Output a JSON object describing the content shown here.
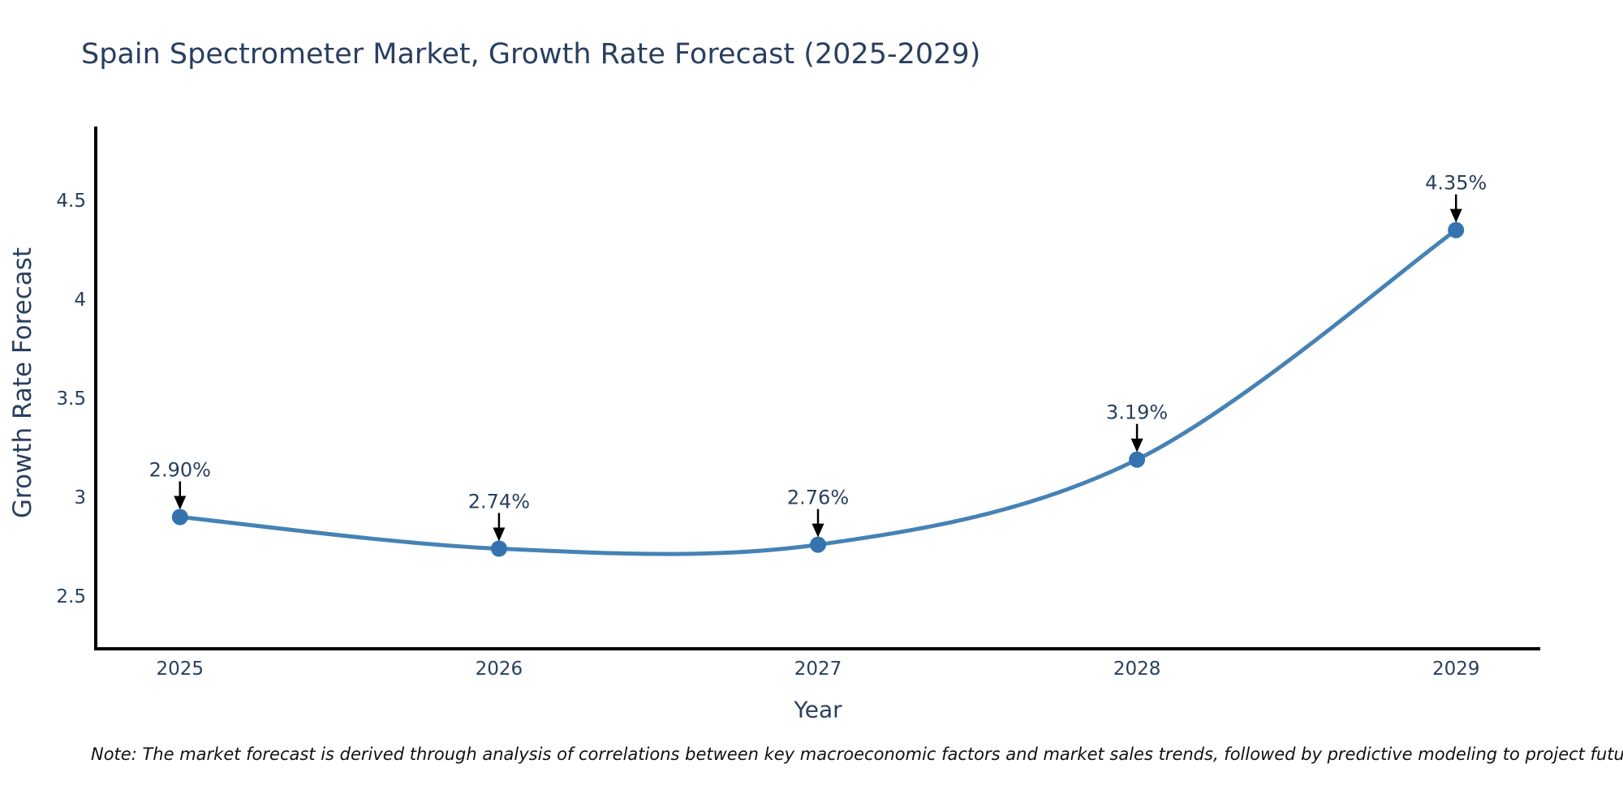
{
  "title": "Spain Spectrometer Market, Growth Rate Forecast (2025-2029)",
  "note": "Note: The market forecast is derived through analysis of correlations between key macroeconomic factors and market sales trends, followed by predictive modeling to project future sales",
  "chart_data": {
    "type": "line",
    "title": "Spain Spectrometer Market, Growth Rate Forecast (2025-2029)",
    "xlabel": "Year",
    "ylabel": "Growth Rate Forecast",
    "x": [
      2025,
      2026,
      2027,
      2028,
      2029
    ],
    "y": [
      2.9,
      2.74,
      2.76,
      3.19,
      4.35
    ],
    "point_labels": [
      "2.90%",
      "2.74%",
      "2.76%",
      "3.19%",
      "4.35%"
    ],
    "xtick_labels": [
      "2025",
      "2026",
      "2027",
      "2028",
      "2029"
    ],
    "yticks": [
      4.5,
      4.0,
      3.5,
      3.0,
      2.5
    ],
    "ytick_labels": [
      "4.5",
      "4",
      "3.5",
      "3",
      "2.5"
    ],
    "xlim": [
      2024.736,
      2029.264
    ],
    "ylim": [
      2.234,
      4.865
    ],
    "grid": false,
    "legend": "none",
    "line_shape": "spline",
    "line_color": "#4682b4",
    "marker_color": "#3473b0",
    "axis_color": "#000000",
    "text_color": "#2a3f5f",
    "arrow_color": "#000000"
  }
}
